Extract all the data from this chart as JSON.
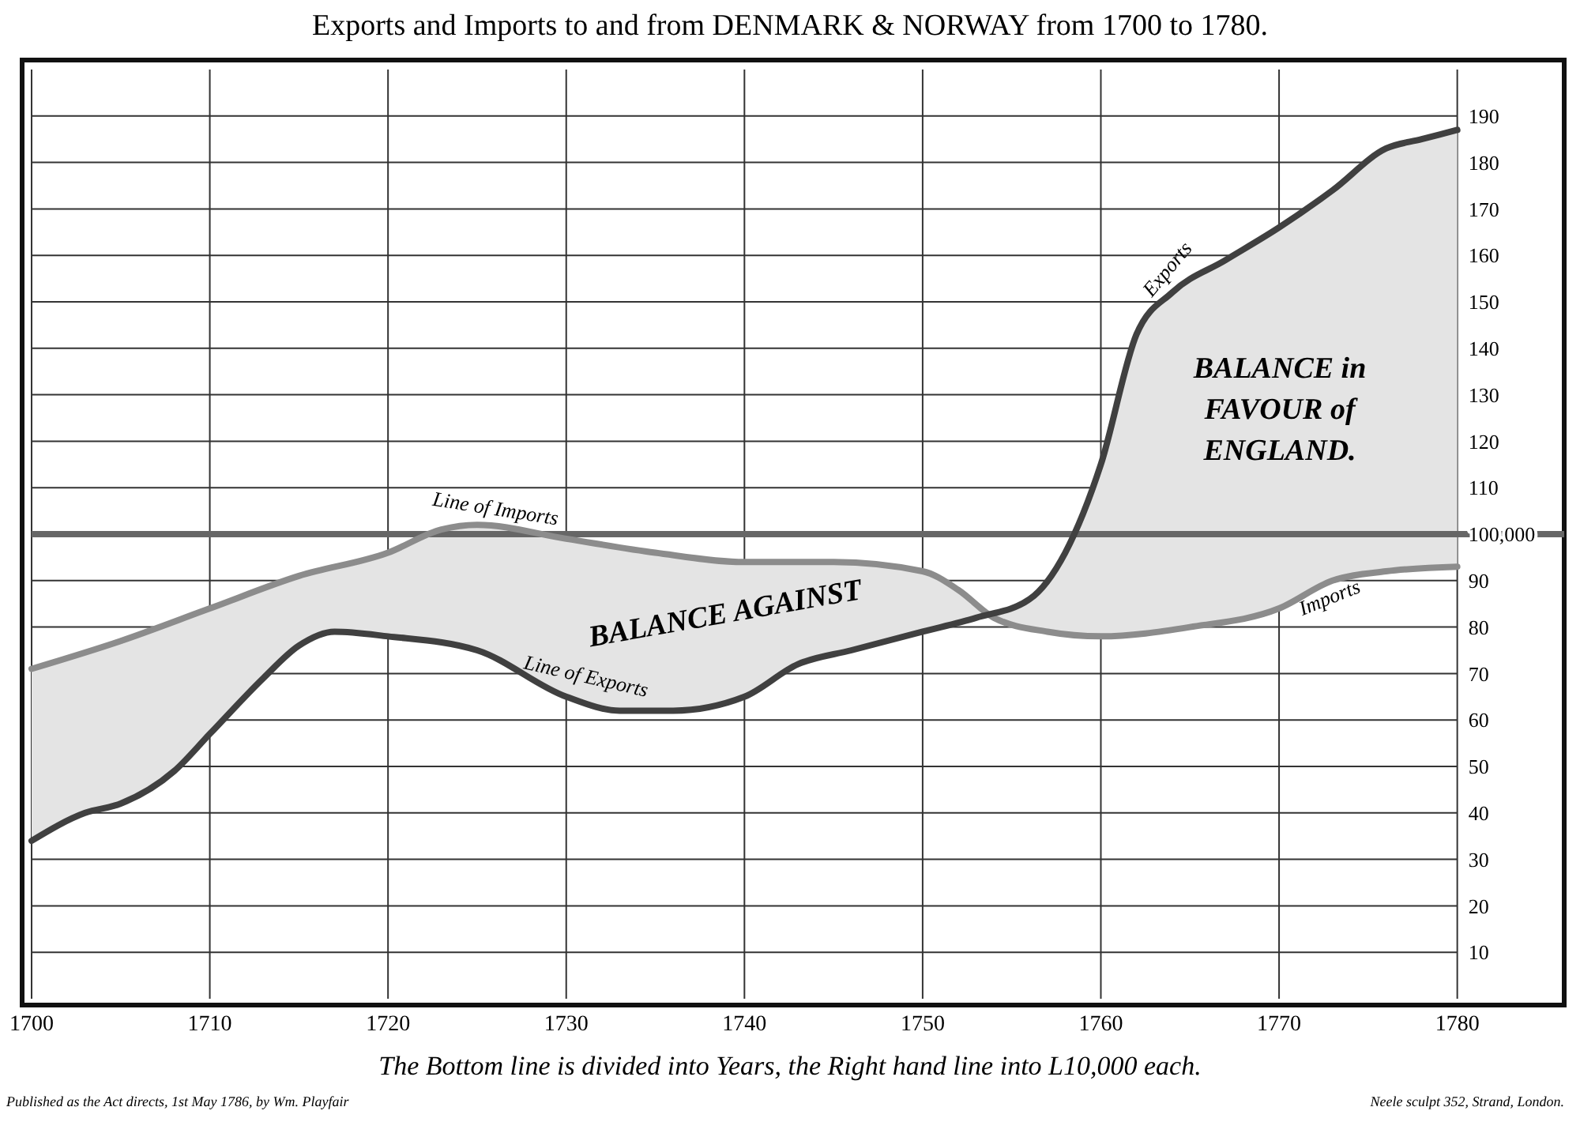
{
  "chart_data": {
    "type": "line",
    "title": "Exports and Imports to and from DENMARK & NORWAY from 1700 to 1780.",
    "xlim": [
      1700,
      1786
    ],
    "xticks": [
      1700,
      1710,
      1720,
      1730,
      1740,
      1750,
      1760,
      1770,
      1780
    ],
    "ylim": [
      0,
      200
    ],
    "yticks": [
      10,
      20,
      30,
      40,
      50,
      60,
      70,
      80,
      90,
      110,
      120,
      130,
      140,
      150,
      160,
      170,
      180,
      190
    ],
    "grid": true,
    "legend": false,
    "series": [
      {
        "name": "Imports",
        "color": "#8c8c8c",
        "x": [
          1700,
          1705,
          1710,
          1715,
          1720,
          1723,
          1725,
          1730,
          1735,
          1740,
          1745,
          1750,
          1752,
          1754,
          1757,
          1760,
          1765,
          1770,
          1773,
          1776,
          1780
        ],
        "values": [
          71,
          77,
          84,
          91,
          96,
          101,
          102,
          99,
          96,
          94,
          94,
          92,
          88,
          82,
          79,
          78,
          80,
          84,
          90,
          92,
          93
        ]
      },
      {
        "name": "Exports",
        "color": "#404040",
        "x": [
          1700,
          1703,
          1705,
          1708,
          1710,
          1713,
          1715,
          1717,
          1720,
          1725,
          1730,
          1733,
          1736,
          1740,
          1743,
          1746,
          1750,
          1753,
          1756,
          1758,
          1760,
          1762,
          1764,
          1767,
          1770,
          1773,
          1776,
          1778,
          1780
        ],
        "values": [
          34,
          40,
          42,
          49,
          57,
          69,
          76,
          79,
          78,
          75,
          65,
          62,
          62,
          65,
          72,
          75,
          79,
          82,
          86,
          96,
          115,
          143,
          152,
          159,
          166,
          174,
          183,
          185,
          187
        ]
      }
    ],
    "ref_lines": [
      {
        "axis": "y",
        "value": 100,
        "label": "100,000"
      }
    ],
    "annotations": [
      "Line of Imports",
      "Line of Exports",
      "BALANCE AGAINST",
      "BALANCE in FAVOUR of ENGLAND.",
      "The Bottom line is divided into Years, the Right hand line into L10,000 each.",
      "Published as the Act directs, 1st May 1786, by Wm. Playfair",
      "Neele sculpt 352, Strand, London."
    ]
  }
}
